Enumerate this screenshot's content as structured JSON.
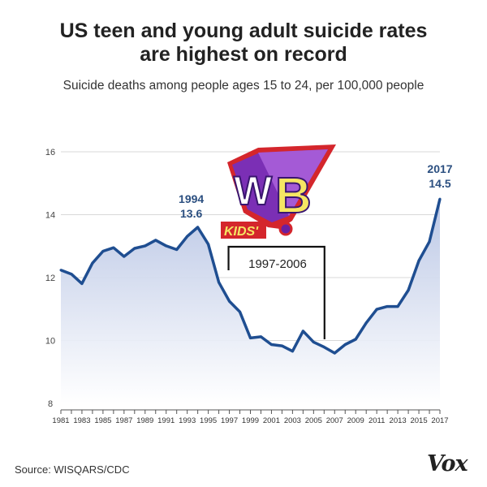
{
  "header": {
    "title_line1": "US teen and young adult suicide rates",
    "title_line2": "are highest on record",
    "subtitle": "Suicide deaths among people ages 15 to 24, per 100,000 people"
  },
  "footer": {
    "source": "Source: WISQARS/CDC",
    "brand": "Vox"
  },
  "overlay": {
    "logo_text": "Kids' WB",
    "bracket_label": "1997-2006",
    "bracket_range": [
      1997,
      2006
    ]
  },
  "colors": {
    "line": "#1f4e91",
    "fill": "#c9d3ea",
    "label": "#2b4f80",
    "grid": "#d8d8d8"
  },
  "chart_data": {
    "type": "area",
    "title": "US teen and young adult suicide rates are highest on record",
    "ylabel": "Suicide deaths per 100,000 people (ages 15-24)",
    "xlim": [
      1981,
      2017
    ],
    "ylim": [
      8,
      16
    ],
    "yticks": [
      "8",
      "10",
      "12",
      "14",
      "16"
    ],
    "xticks": [
      "1981",
      "1983",
      "1985",
      "1987",
      "1989",
      "1991",
      "1993",
      "1995",
      "1997",
      "1999",
      "2001",
      "2003",
      "2005",
      "2007",
      "2009",
      "2011",
      "2013",
      "2015",
      "2017"
    ],
    "grid": true,
    "x": [
      1981,
      1982,
      1983,
      1984,
      1985,
      1986,
      1987,
      1988,
      1989,
      1990,
      1991,
      1992,
      1993,
      1994,
      1995,
      1996,
      1997,
      1998,
      1999,
      2000,
      2001,
      2002,
      2003,
      2004,
      2005,
      2006,
      2007,
      2008,
      2009,
      2010,
      2011,
      2012,
      2013,
      2014,
      2015,
      2016,
      2017
    ],
    "values": [
      12.24,
      12.11,
      11.81,
      12.46,
      12.84,
      12.95,
      12.67,
      12.93,
      13.01,
      13.19,
      13.01,
      12.89,
      13.31,
      13.6,
      13.06,
      11.85,
      11.25,
      10.91,
      10.08,
      10.12,
      9.87,
      9.83,
      9.66,
      10.3,
      9.95,
      9.79,
      9.6,
      9.87,
      10.04,
      10.56,
      10.99,
      11.08,
      11.08,
      11.6,
      12.54,
      13.14,
      14.5
    ],
    "annotations": [
      {
        "x": 1994,
        "year": "1994",
        "value": "13.6"
      },
      {
        "x": 2017,
        "year": "2017",
        "value": "14.5"
      }
    ]
  }
}
